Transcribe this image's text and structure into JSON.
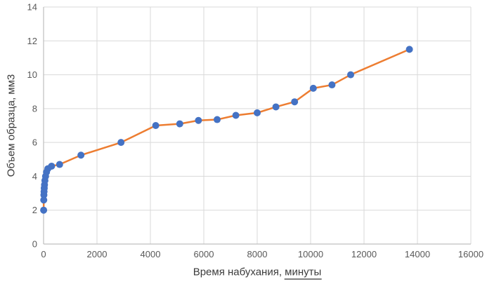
{
  "chart_data": {
    "type": "scatter",
    "title": "",
    "xlabel": "Время набухания, минуты",
    "xlabel_main": "Время набухания, ",
    "xlabel_underlined": "минуты",
    "ylabel": "Объем образца, мм3",
    "x": [
      3,
      7,
      12,
      18,
      25,
      35,
      50,
      75,
      110,
      160,
      300,
      600,
      1400,
      2900,
      4200,
      5100,
      5800,
      6500,
      7200,
      8000,
      8700,
      9400,
      10100,
      10800,
      11500,
      13700
    ],
    "y": [
      2.0,
      2.6,
      2.9,
      3.1,
      3.3,
      3.5,
      3.75,
      4.0,
      4.25,
      4.45,
      4.6,
      4.7,
      5.25,
      6.0,
      7.0,
      7.1,
      7.3,
      7.35,
      7.6,
      7.75,
      8.1,
      8.4,
      9.2,
      9.4,
      10.0,
      11.5
    ],
    "xlim": [
      0,
      16000
    ],
    "ylim": [
      0,
      14
    ],
    "xticks": [
      0,
      2000,
      4000,
      6000,
      8000,
      10000,
      12000,
      14000,
      16000
    ],
    "yticks": [
      0,
      2,
      4,
      6,
      8,
      10,
      12,
      14
    ],
    "grid": true,
    "legend": "none",
    "line_color": "#ED7D31",
    "marker_color": "#4472C4",
    "grid_color": "#D9D9D9",
    "axis_color": "#BFBFBF",
    "tick_label_color": "#595959",
    "marker_radius": 5,
    "line_width": 2.5
  }
}
